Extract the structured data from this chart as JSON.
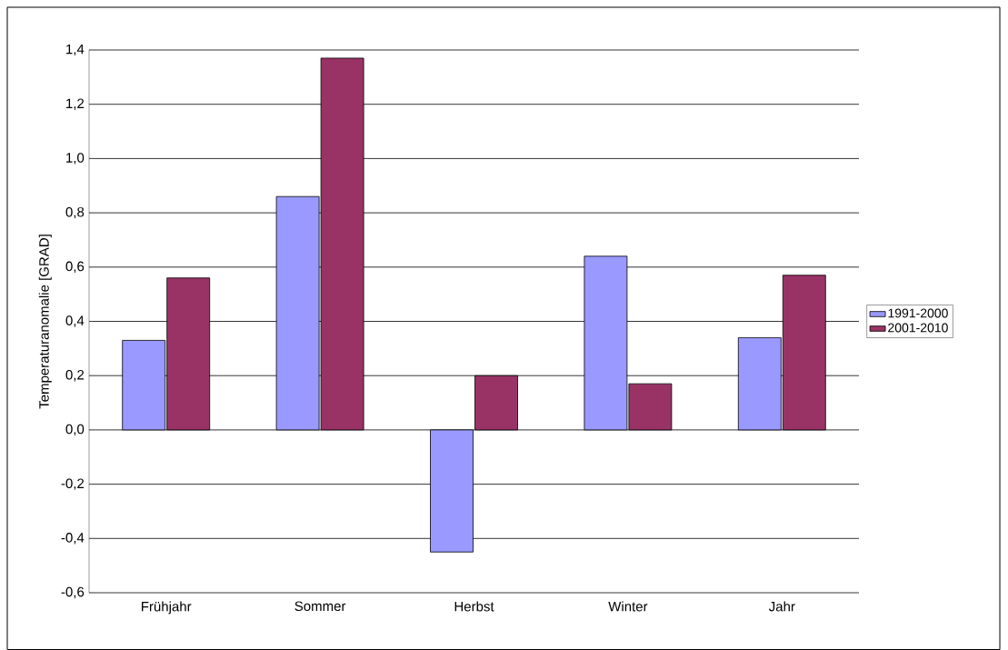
{
  "chart_data": {
    "type": "bar",
    "ylabel": "Temperaturanomalie [GRAD]",
    "categories": [
      "Frühjahr",
      "Sommer",
      "Herbst",
      "Winter",
      "Jahr"
    ],
    "series": [
      {
        "name": "1991-2000",
        "color": "#9999ff",
        "values": [
          0.33,
          0.86,
          -0.45,
          0.64,
          0.34
        ]
      },
      {
        "name": "2001-2010",
        "color": "#993366",
        "values": [
          0.56,
          1.37,
          0.2,
          0.17,
          0.57
        ]
      }
    ],
    "ylim": [
      -0.6,
      1.4
    ],
    "yticks": [
      {
        "value": -0.6,
        "label": "-0,6"
      },
      {
        "value": -0.4,
        "label": "-0,4"
      },
      {
        "value": -0.2,
        "label": "-0,2"
      },
      {
        "value": 0,
        "label": "0,0"
      },
      {
        "value": 0.2,
        "label": "0,2"
      },
      {
        "value": 0.4,
        "label": "0,4"
      },
      {
        "value": 0.6,
        "label": "0,6"
      },
      {
        "value": 0.8,
        "label": "0,8"
      },
      {
        "value": 1.0,
        "label": "1,0"
      },
      {
        "value": 1.2,
        "label": "1,2"
      },
      {
        "value": 1.4,
        "label": "1,4"
      }
    ],
    "grid": "y",
    "legend": "right"
  }
}
